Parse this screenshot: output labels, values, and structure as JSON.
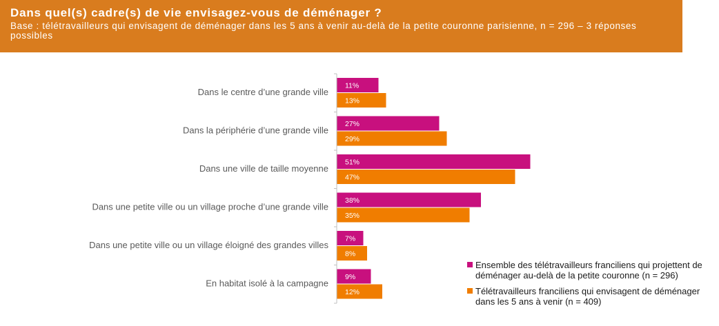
{
  "header": {
    "title": "Dans quel(s) cadre(s) de vie envisagez-vous de déménager ?",
    "subtitle": "Base : télétravailleurs qui envisagent de déménager dans les 5 ans à venir au-delà de la petite couronne parisienne, n = 296 – 3 réponses possibles"
  },
  "colors": {
    "header_bg": "#d97c1e",
    "series1": "#c8107e",
    "series2": "#f07d00"
  },
  "chart_data": {
    "type": "bar",
    "orientation": "horizontal",
    "categories": [
      "Dans le centre d’une grande ville",
      "Dans la périphérie d’une grande ville",
      "Dans une ville de taille moyenne",
      "Dans une petite ville ou un village proche d’une grande ville",
      "Dans une petite ville ou un village éloigné des grandes villes",
      "En habitat isolé à la campagne"
    ],
    "series": [
      {
        "name": "Ensemble des télétravailleurs franciliens qui projettent de déménager au-delà de la petite couronne (n = 296)",
        "color": "#c8107e",
        "values": [
          11,
          27,
          51,
          38,
          7,
          9
        ],
        "labels": [
          "11%",
          "27%",
          "51%",
          "38%",
          "7%",
          "9%"
        ]
      },
      {
        "name": "Télétravailleurs franciliens qui envisagent de déménager dans les 5 ans à venir (n = 409)",
        "color": "#f07d00",
        "values": [
          13,
          29,
          47,
          35,
          8,
          12
        ],
        "labels": [
          "13%",
          "29%",
          "47%",
          "35%",
          "8%",
          "12%"
        ]
      }
    ],
    "xlim": [
      0,
      60
    ],
    "grid": false,
    "legend_position": "bottom-right"
  }
}
